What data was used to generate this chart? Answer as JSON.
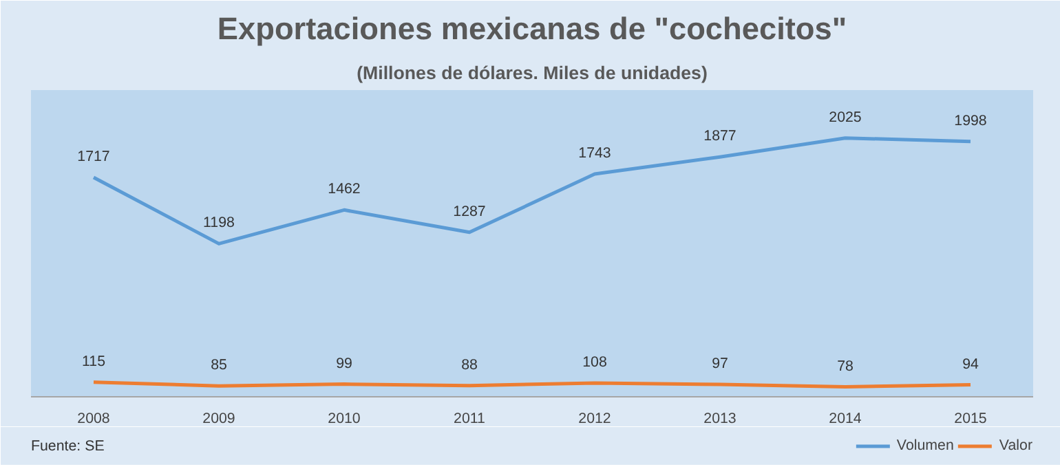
{
  "chart_data": {
    "type": "line",
    "title": "Exportaciones mexicanas de \"cochecitos\"",
    "subtitle": "(Millones de dólares. Miles de unidades)",
    "categories": [
      "2008",
      "2009",
      "2010",
      "2011",
      "2012",
      "2013",
      "2014",
      "2015"
    ],
    "series": [
      {
        "name": "Volumen",
        "color": "#5b9bd5",
        "values": [
          1717,
          1198,
          1462,
          1287,
          1743,
          1877,
          2025,
          1998
        ]
      },
      {
        "name": "Valor",
        "color": "#ed7d31",
        "values": [
          115,
          85,
          99,
          88,
          108,
          97,
          78,
          94
        ]
      }
    ],
    "ylim": [
      0,
      2400
    ],
    "data_labels": true,
    "grid": false,
    "legend": "bottom right",
    "marker": "none",
    "line_style": "solid",
    "annotations": [
      "Fuente: SE"
    ]
  }
}
